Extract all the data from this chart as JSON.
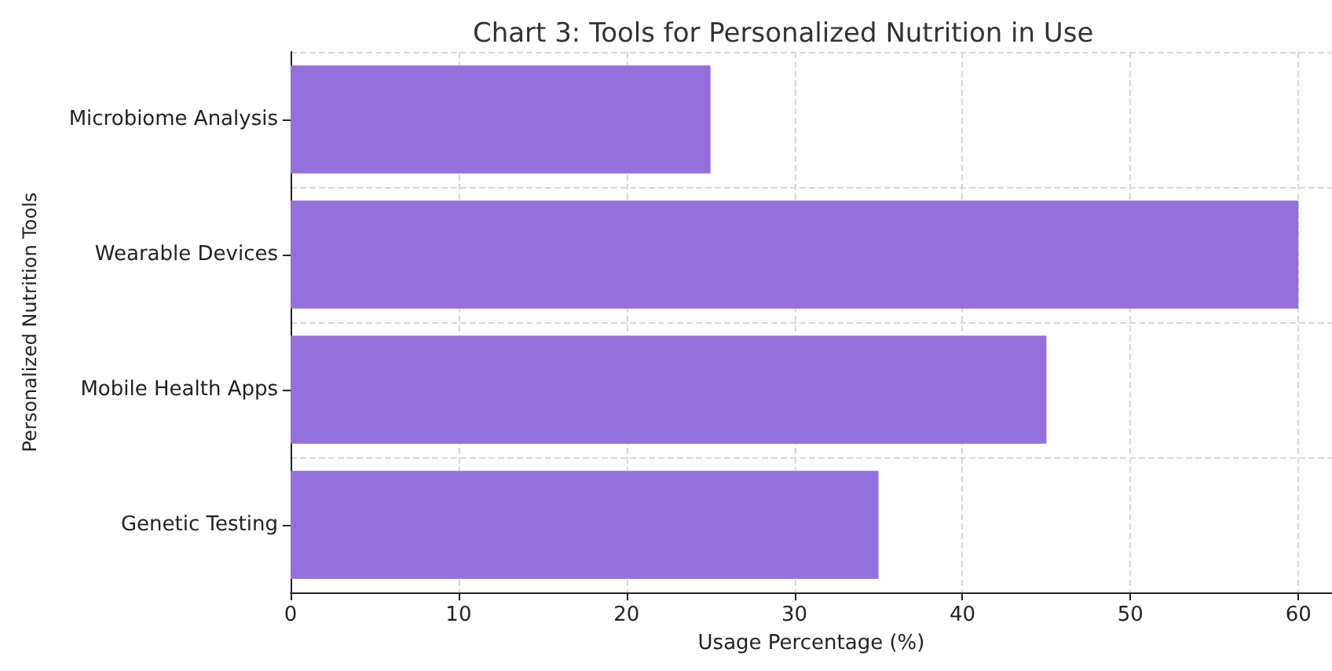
{
  "chart_data": {
    "type": "bar",
    "orientation": "horizontal",
    "title": "Chart 3: Tools for Personalized Nutrition in Use",
    "xlabel": "Usage Percentage (%)",
    "ylabel": "Personalized Nutrition Tools",
    "categories": [
      "Microbiome Analysis",
      "Wearable Devices",
      "Mobile Health Apps",
      "Genetic Testing"
    ],
    "values": [
      25,
      60,
      45,
      35
    ],
    "color": "#9370db",
    "xlim": [
      0,
      62
    ],
    "xticks": [
      0,
      10,
      20,
      30,
      40,
      50,
      60
    ],
    "grid": true
  }
}
